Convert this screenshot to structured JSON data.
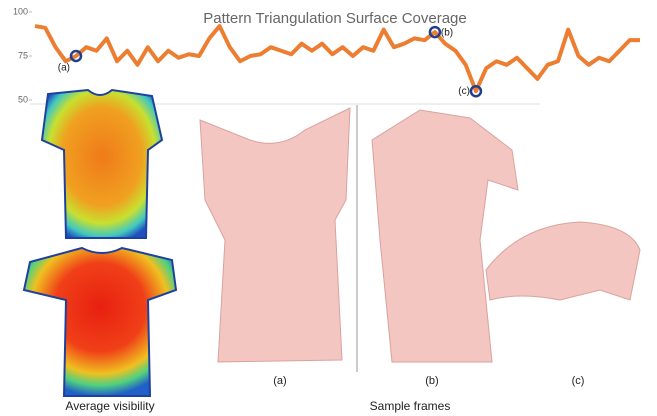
{
  "chart_data": {
    "type": "line",
    "title": "Pattern Triangulation Surface Coverage",
    "values": [
      92,
      91,
      80,
      72,
      75,
      80,
      78,
      85,
      72,
      78,
      70,
      80,
      72,
      78,
      74,
      76,
      75,
      85,
      92,
      80,
      72,
      75,
      76,
      80,
      78,
      76,
      82,
      78,
      82,
      76,
      80,
      75,
      80,
      78,
      90,
      80,
      82,
      85,
      84,
      88.6,
      82,
      78,
      70,
      55,
      68,
      72,
      70,
      74,
      68,
      62,
      70,
      72,
      90,
      75,
      70,
      74,
      72,
      78,
      84,
      84
    ],
    "color": "#ed7d31",
    "ylim": [
      50,
      100
    ],
    "yticks": [
      50,
      75,
      100
    ],
    "grid": false,
    "annotations": [
      {
        "label": "(a)",
        "x": 4,
        "value": 75
      },
      {
        "label": "(b)",
        "x": 39,
        "value": 88.6
      },
      {
        "label": "(c)",
        "x": 43,
        "value": 55
      }
    ]
  },
  "figure": {
    "frame_labels": [
      "(a)",
      "(b)",
      "(c)"
    ],
    "left_caption": "Average visibility",
    "right_caption": "Sample frames"
  }
}
